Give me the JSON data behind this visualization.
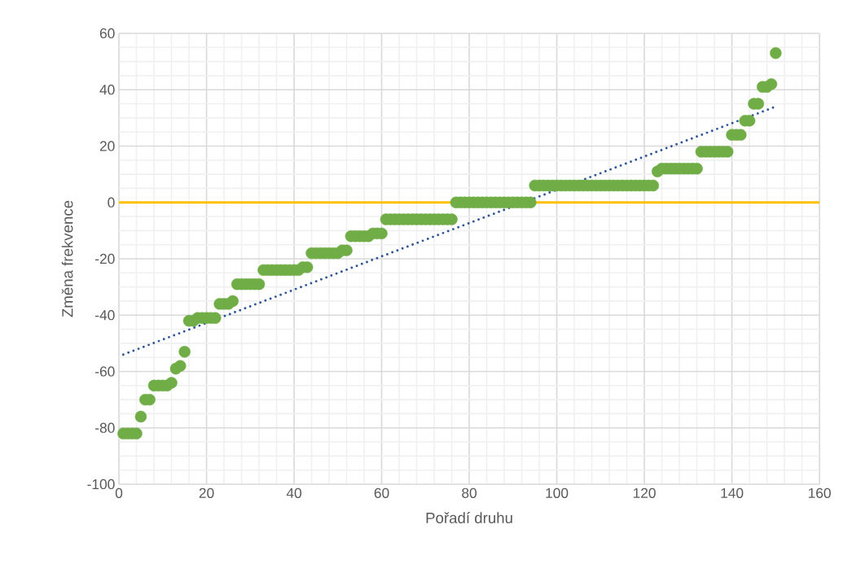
{
  "chart_data": {
    "type": "scatter",
    "xlabel": "Pořadí druhu",
    "ylabel": "Změna frekvence",
    "xlim": [
      0,
      160
    ],
    "ylim": [
      -100,
      60
    ],
    "xticks": [
      0,
      20,
      40,
      60,
      80,
      100,
      120,
      140,
      160
    ],
    "yticks": [
      -100,
      -80,
      -60,
      -40,
      -20,
      0,
      20,
      40,
      60
    ],
    "grid": true,
    "series": [
      {
        "color": "#70ad47",
        "marker": "circle",
        "x": [
          1,
          2,
          3,
          4,
          5,
          6,
          7,
          8,
          9,
          10,
          11,
          12,
          13,
          14,
          15,
          16,
          17,
          18,
          19,
          20,
          21,
          22,
          23,
          24,
          25,
          26,
          27,
          28,
          29,
          30,
          31,
          32,
          33,
          34,
          35,
          36,
          37,
          38,
          39,
          40,
          41,
          42,
          43,
          44,
          45,
          46,
          47,
          48,
          49,
          50,
          51,
          52,
          53,
          54,
          55,
          56,
          57,
          58,
          59,
          60,
          61,
          62,
          63,
          64,
          65,
          66,
          67,
          68,
          69,
          70,
          71,
          72,
          73,
          74,
          75,
          76,
          77,
          78,
          79,
          80,
          81,
          82,
          83,
          84,
          85,
          86,
          87,
          88,
          89,
          90,
          91,
          92,
          93,
          94,
          95,
          96,
          97,
          98,
          99,
          100,
          101,
          102,
          103,
          104,
          105,
          106,
          107,
          108,
          109,
          110,
          111,
          112,
          113,
          114,
          115,
          116,
          117,
          118,
          119,
          120,
          121,
          122,
          123,
          124,
          125,
          126,
          127,
          128,
          129,
          130,
          131,
          132,
          133,
          134,
          135,
          136,
          137,
          138,
          139,
          140,
          141,
          142,
          143,
          144,
          145,
          146,
          147,
          148,
          149,
          150
        ],
        "values": [
          -82,
          -82,
          -82,
          -82,
          -76,
          -70,
          -70,
          -65,
          -65,
          -65,
          -65,
          -64,
          -59,
          -58,
          -53,
          -42,
          -42,
          -41,
          -41,
          -41,
          -41,
          -41,
          -36,
          -36,
          -36,
          -35,
          -29,
          -29,
          -29,
          -29,
          -29,
          -29,
          -24,
          -24,
          -24,
          -24,
          -24,
          -24,
          -24,
          -24,
          -24,
          -23,
          -23,
          -18,
          -18,
          -18,
          -18,
          -18,
          -18,
          -18,
          -17,
          -17,
          -12,
          -12,
          -12,
          -12,
          -12,
          -11,
          -11,
          -11,
          -6,
          -6,
          -6,
          -6,
          -6,
          -6,
          -6,
          -6,
          -6,
          -6,
          -6,
          -6,
          -6,
          -6,
          -6,
          -6,
          0,
          0,
          0,
          0,
          0,
          0,
          0,
          0,
          0,
          0,
          0,
          0,
          0,
          0,
          0,
          0,
          0,
          0,
          6,
          6,
          6,
          6,
          6,
          6,
          6,
          6,
          6,
          6,
          6,
          6,
          6,
          6,
          6,
          6,
          6,
          6,
          6,
          6,
          6,
          6,
          6,
          6,
          6,
          6,
          6,
          6,
          11,
          12,
          12,
          12,
          12,
          12,
          12,
          12,
          12,
          12,
          18,
          18,
          18,
          18,
          18,
          18,
          18,
          24,
          24,
          24,
          29,
          29,
          35,
          35,
          41,
          41,
          42,
          53
        ]
      },
      {
        "type": "line",
        "line_style": "dotted",
        "marker": "none",
        "color": "#2f5597",
        "x": [
          1,
          150
        ],
        "values": [
          -54,
          34
        ]
      }
    ],
    "ref_lines": [
      {
        "axis": "y",
        "value": 0,
        "color": "#ffc000"
      }
    ]
  }
}
